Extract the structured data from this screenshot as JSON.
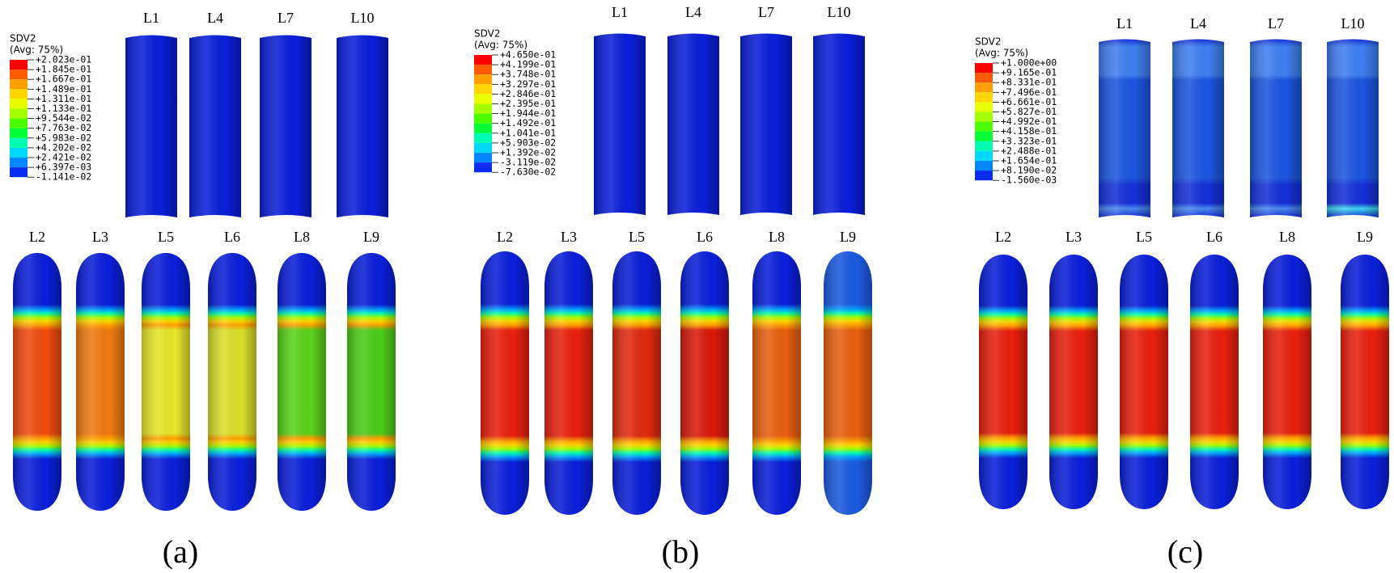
{
  "panels": [
    {
      "legend": {
        "title": "SDV2",
        "subtitle": "(Avg: 75%)",
        "labels": [
          "+2.023e-01",
          "+1.845e-01",
          "+1.667e-01",
          "+1.489e-01",
          "+1.311e-01",
          "+1.133e-01",
          "+9.544e-02",
          "+7.763e-02",
          "+5.983e-02",
          "+4.202e-02",
          "+2.421e-02",
          "+6.397e-03",
          "-1.141e-02"
        ]
      },
      "top_labels": [
        "L1",
        "L4",
        "L7",
        "L10"
      ],
      "bottom_labels": [
        "L2",
        "L3",
        "L5",
        "L6",
        "L8",
        "L9"
      ],
      "caption": "(a)"
    },
    {
      "legend": {
        "title": "SDV2",
        "subtitle": "(Avg: 75%)",
        "labels": [
          "+4.650e-01",
          "+4.199e-01",
          "+3.748e-01",
          "+3.297e-01",
          "+2.846e-01",
          "+2.395e-01",
          "+1.944e-01",
          "+1.492e-01",
          "+1.041e-01",
          "+5.903e-02",
          "+1.392e-02",
          "-3.119e-02",
          "-7.630e-02"
        ]
      },
      "top_labels": [
        "L1",
        "L4",
        "L7",
        "L10"
      ],
      "bottom_labels": [
        "L2",
        "L3",
        "L5",
        "L6",
        "L8",
        "L9"
      ],
      "caption": "(b)"
    },
    {
      "legend": {
        "title": "SDV2",
        "subtitle": "(Avg: 75%)",
        "labels": [
          "+1.000e+00",
          "+9.165e-01",
          "+8.331e-01",
          "+7.496e-01",
          "+6.661e-01",
          "+5.827e-01",
          "+4.992e-01",
          "+4.158e-01",
          "+3.323e-01",
          "+2.488e-01",
          "+1.654e-01",
          "+8.190e-02",
          "-1.560e-03"
        ]
      },
      "top_labels": [
        "L1",
        "L4",
        "L7",
        "L10"
      ],
      "bottom_labels": [
        "L2",
        "L3",
        "L5",
        "L6",
        "L8",
        "L9"
      ],
      "caption": "(c)"
    }
  ]
}
